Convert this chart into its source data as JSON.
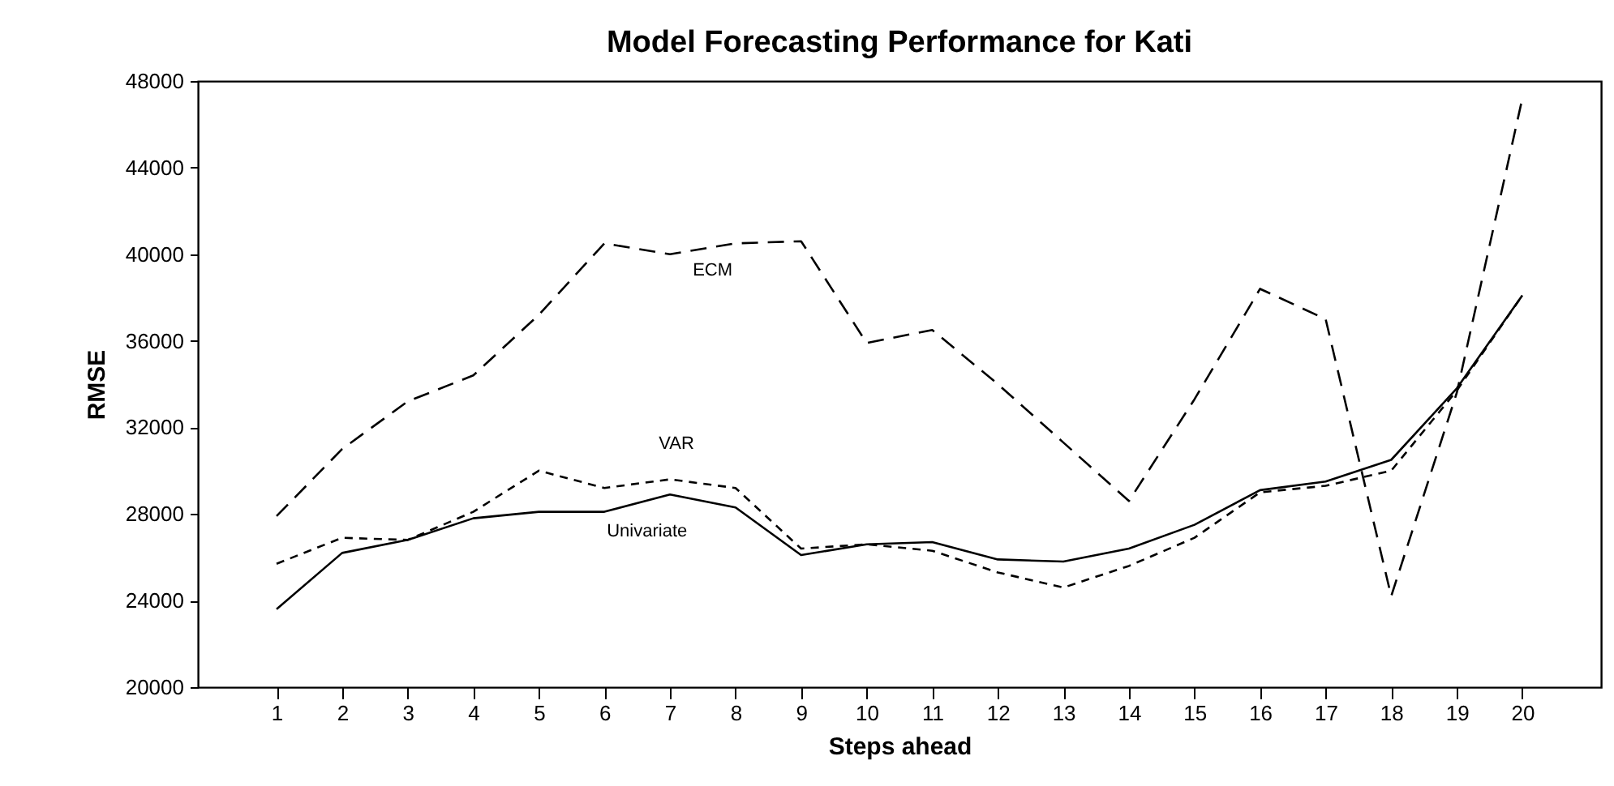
{
  "chart_data": {
    "type": "line",
    "title": "Model Forecasting Performance for Kati",
    "xlabel": "Steps ahead",
    "ylabel": "RMSE",
    "x": [
      1,
      2,
      3,
      4,
      5,
      6,
      7,
      8,
      9,
      10,
      11,
      12,
      13,
      14,
      15,
      16,
      17,
      18,
      19,
      20
    ],
    "xlim": [
      -0.2,
      21.2
    ],
    "xticks": [
      1,
      2,
      3,
      4,
      5,
      6,
      7,
      8,
      9,
      10,
      11,
      12,
      13,
      14,
      15,
      16,
      17,
      18,
      19,
      20
    ],
    "ylim": [
      20000,
      48000
    ],
    "yticks": [
      20000,
      24000,
      28000,
      32000,
      36000,
      40000,
      44000,
      48000
    ],
    "grid": false,
    "marker": "none",
    "series": [
      {
        "name": "ECM",
        "color": "#000000",
        "line_style": "dashed",
        "values": [
          27900,
          31000,
          33200,
          34400,
          37200,
          40500,
          40000,
          40500,
          40600,
          35900,
          36500,
          34000,
          31300,
          28600,
          33300,
          38400,
          37000,
          24200,
          33600,
          47200
        ]
      },
      {
        "name": "VAR",
        "color": "#000000",
        "line_style": "dashed",
        "values": [
          25700,
          26900,
          26800,
          28100,
          30000,
          29200,
          29600,
          29200,
          26400,
          26600,
          26300,
          25300,
          24600,
          25600,
          26900,
          29000,
          29300,
          30000,
          33700,
          38100
        ]
      },
      {
        "name": "Univariate",
        "color": "#000000",
        "line_style": "solid",
        "values": [
          23600,
          26200,
          26800,
          27800,
          28100,
          28100,
          28900,
          28300,
          26100,
          26600,
          26700,
          25900,
          25800,
          26400,
          27500,
          29100,
          29500,
          30500,
          33800,
          38100
        ]
      }
    ]
  }
}
